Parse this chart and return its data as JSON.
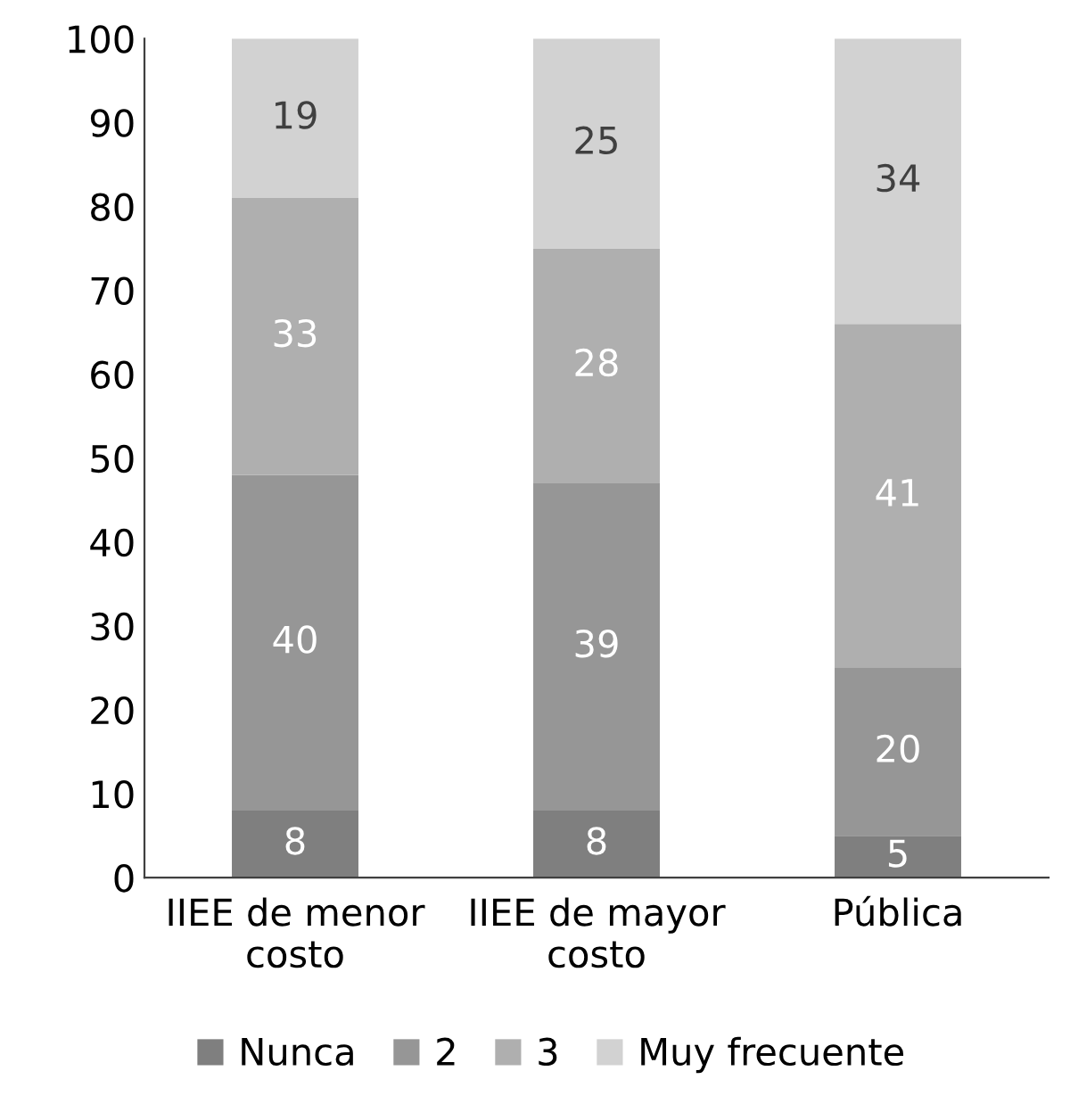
{
  "chart_data": {
    "type": "bar",
    "stacked": true,
    "categories": [
      "IIEE de menor\ncosto",
      "IIEE de mayor\ncosto",
      "Pública"
    ],
    "series": [
      {
        "name": "Nunca",
        "color": "#7f7f7f",
        "values": [
          8,
          8,
          5
        ]
      },
      {
        "name": "2",
        "color": "#969696",
        "values": [
          40,
          39,
          20
        ]
      },
      {
        "name": "3",
        "color": "#afafaf",
        "values": [
          33,
          28,
          41
        ]
      },
      {
        "name": "Muy frecuente",
        "color": "#d2d2d2",
        "values": [
          19,
          25,
          34
        ]
      }
    ],
    "ylim": [
      0,
      100
    ],
    "yticks": [
      0,
      10,
      20,
      30,
      40,
      50,
      60,
      70,
      80,
      90,
      100
    ],
    "data_labels": true,
    "legend": "bottom",
    "grid": false
  }
}
